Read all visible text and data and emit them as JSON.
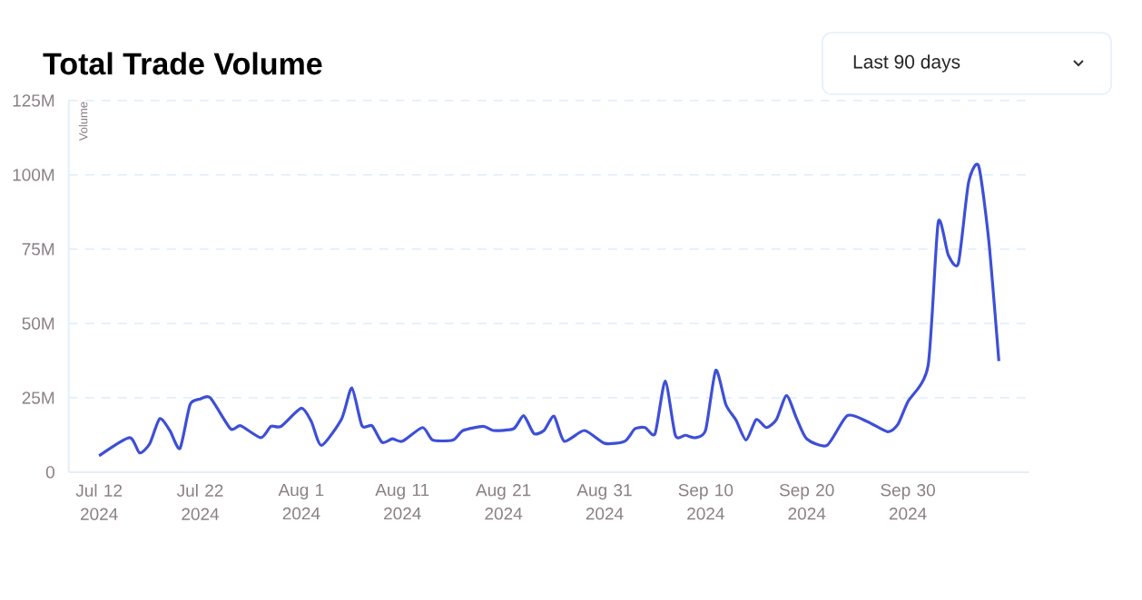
{
  "chart_data": {
    "type": "line",
    "title": "Total Trade Volume",
    "ylabel": "Volume",
    "annotations": [
      "Last 90 days"
    ],
    "x": [
      "2024-07-12",
      "2024-07-15",
      "2024-07-16",
      "2024-07-17",
      "2024-07-18",
      "2024-07-19",
      "2024-07-20",
      "2024-07-21",
      "2024-07-22",
      "2024-07-23",
      "2024-07-25",
      "2024-07-26",
      "2024-07-28",
      "2024-07-29",
      "2024-07-30",
      "2024-08-01",
      "2024-08-02",
      "2024-08-03",
      "2024-08-05",
      "2024-08-06",
      "2024-08-07",
      "2024-08-08",
      "2024-08-09",
      "2024-08-10",
      "2024-08-11",
      "2024-08-13",
      "2024-08-14",
      "2024-08-16",
      "2024-08-17",
      "2024-08-19",
      "2024-08-20",
      "2024-08-22",
      "2024-08-23",
      "2024-08-24",
      "2024-08-25",
      "2024-08-26",
      "2024-08-27",
      "2024-08-29",
      "2024-08-31",
      "2024-09-02",
      "2024-09-03",
      "2024-09-04",
      "2024-09-05",
      "2024-09-06",
      "2024-09-07",
      "2024-09-08",
      "2024-09-09",
      "2024-09-10",
      "2024-09-11",
      "2024-09-12",
      "2024-09-13",
      "2024-09-14",
      "2024-09-15",
      "2024-09-16",
      "2024-09-17",
      "2024-09-18",
      "2024-09-19",
      "2024-09-20",
      "2024-09-22",
      "2024-09-24",
      "2024-09-26",
      "2024-09-28",
      "2024-09-29",
      "2024-09-30",
      "2024-10-02",
      "2024-10-03",
      "2024-10-04",
      "2024-10-05",
      "2024-10-06",
      "2024-10-07",
      "2024-10-08",
      "2024-10-09"
    ],
    "series": [
      {
        "color": "#3d4fd8",
        "values": [
          5.5,
          11.6,
          6.5,
          9.5,
          18,
          14,
          8,
          22.7,
          24.6,
          25,
          14.6,
          15.6,
          11.6,
          15.4,
          15.4,
          21.5,
          17,
          9,
          18,
          28.3,
          15.6,
          15.6,
          10,
          11.2,
          10.4,
          15,
          10.8,
          10.8,
          14,
          15.4,
          14,
          14.6,
          19,
          13,
          14,
          18.8,
          10.4,
          14,
          9.7,
          10.4,
          14.6,
          15,
          13,
          30.7,
          12.4,
          12.4,
          11.6,
          14.2,
          34.3,
          22.7,
          17.5,
          10.8,
          17.7,
          15,
          17.7,
          25.8,
          18,
          11.2,
          9,
          19,
          17,
          13.6,
          16,
          23.7,
          35.8,
          84,
          73,
          70.3,
          97.4,
          103,
          78,
          37.4
        ]
      }
    ],
    "xlim": [
      "2024-07-09",
      "2024-10-12"
    ],
    "xticks": [
      {
        "value": "2024-07-12",
        "label": "Jul 12 2024"
      },
      {
        "value": "2024-07-22",
        "label": "Jul 22 2024"
      },
      {
        "value": "2024-08-01",
        "label": "Aug 1 2024"
      },
      {
        "value": "2024-08-11",
        "label": "Aug 11 2024"
      },
      {
        "value": "2024-08-21",
        "label": "Aug 21 2024"
      },
      {
        "value": "2024-08-31",
        "label": "Aug 31 2024"
      },
      {
        "value": "2024-09-10",
        "label": "Sep 10 2024"
      },
      {
        "value": "2024-09-20",
        "label": "Sep 20 2024"
      },
      {
        "value": "2024-09-30",
        "label": "Sep 30 2024"
      }
    ],
    "ylim": [
      0,
      125
    ],
    "yticks": [
      0,
      {
        "value": 25,
        "label": "25M"
      },
      {
        "value": 50,
        "label": "50M"
      },
      {
        "value": 75,
        "label": "75M"
      },
      {
        "value": 100,
        "label": "100M"
      },
      {
        "value": 125,
        "label": "125M"
      }
    ],
    "grid": "y",
    "line_style": "solid",
    "marker": "none"
  }
}
